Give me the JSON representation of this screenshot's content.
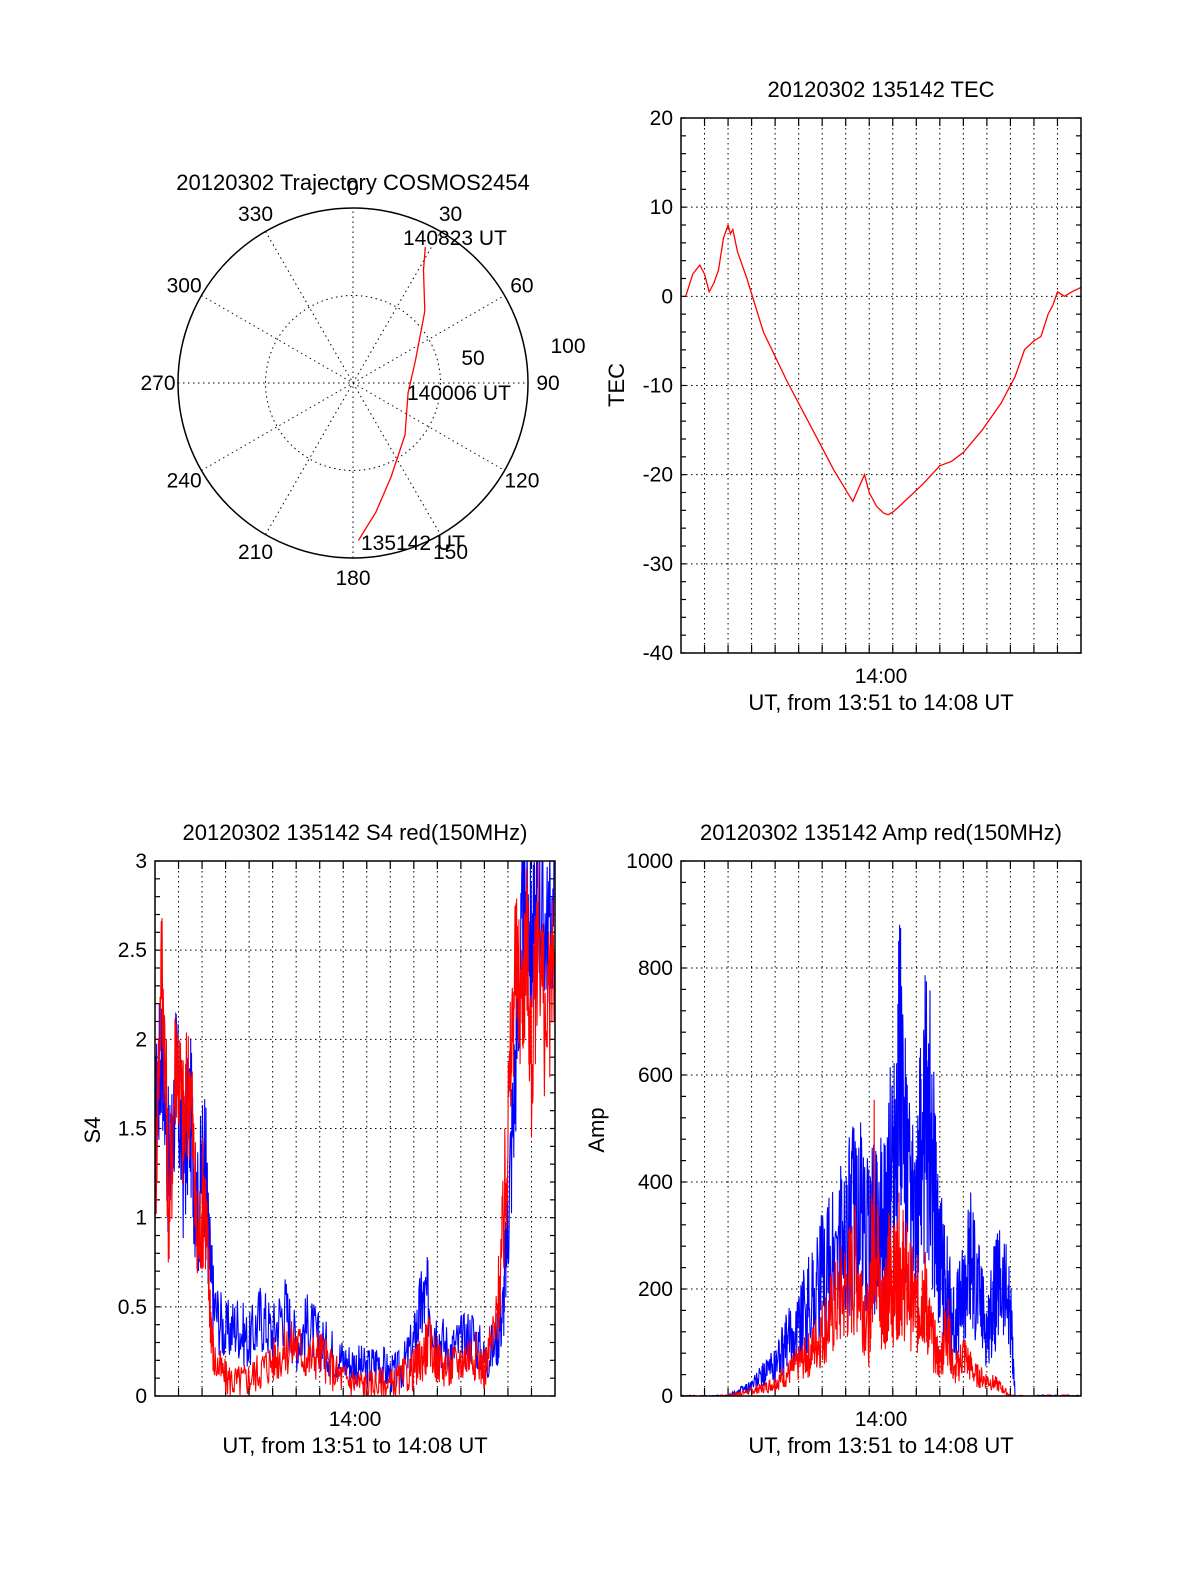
{
  "chart_data": [
    {
      "id": "trajectory",
      "type": "polar",
      "title": "20120302 Trajectory COSMOS2454",
      "angle_labels": [
        "0",
        "30",
        "60",
        "90",
        "120",
        "150",
        "180",
        "210",
        "240",
        "270",
        "300",
        "330"
      ],
      "radial_labels": [
        "50",
        "100"
      ],
      "rlim": [
        0,
        100
      ],
      "series": [
        {
          "name": "trajectory",
          "color": "#ff0000",
          "points": [
            {
              "az": 178,
              "r": 90
            },
            {
              "az": 170,
              "r": 75
            },
            {
              "az": 158,
              "r": 58
            },
            {
              "az": 135,
              "r": 42
            },
            {
              "az": 100,
              "r": 32
            },
            {
              "az": 70,
              "r": 38
            },
            {
              "az": 45,
              "r": 58
            },
            {
              "az": 32,
              "r": 76
            },
            {
              "az": 28,
              "r": 88
            }
          ]
        }
      ],
      "annotations": [
        {
          "text": "140823 UT",
          "az": 28,
          "r": 92
        },
        {
          "text": "140006 UT",
          "az": 100,
          "r": 32
        },
        {
          "text": "135142 UT",
          "az": 175,
          "r": 91
        }
      ]
    },
    {
      "id": "tec",
      "type": "line",
      "title": "20120302 135142 TEC",
      "xlabel": "UT, from 13:51 to 14:08 UT",
      "ylabel": "TEC",
      "x_unit": "minutes since 13:51",
      "xlim": [
        0,
        17
      ],
      "ylim": [
        -40,
        20
      ],
      "y_ticks": [
        -40,
        -30,
        -20,
        -10,
        0,
        10,
        20
      ],
      "x_ticks": [
        {
          "value": 9,
          "label": "14:00"
        }
      ],
      "series": [
        {
          "name": "TEC",
          "color": "#ff0000",
          "x": [
            0.2,
            0.5,
            0.8,
            1.0,
            1.2,
            1.4,
            1.6,
            1.8,
            2.0,
            2.1,
            2.2,
            2.4,
            2.8,
            3.5,
            4.5,
            5.5,
            6.5,
            7.3,
            7.8,
            8.0,
            8.3,
            8.6,
            8.8,
            9.0,
            9.3,
            9.7,
            10.3,
            11.0,
            11.5,
            12.0,
            12.8,
            13.6,
            14.2,
            14.6,
            15.0,
            15.3,
            15.6,
            15.8,
            16.0,
            16.3,
            16.6,
            17.0
          ],
          "values": [
            0,
            2.5,
            3.5,
            2.5,
            0.5,
            1.5,
            3.0,
            6.5,
            8.0,
            7.0,
            7.5,
            5.0,
            2.0,
            -4.0,
            -9.5,
            -14.5,
            -19.5,
            -23.0,
            -20.0,
            -22.0,
            -23.5,
            -24.3,
            -24.5,
            -24.2,
            -23.5,
            -22.5,
            -21.0,
            -19.0,
            -18.5,
            -17.5,
            -15.0,
            -12.0,
            -9.0,
            -6.0,
            -5.0,
            -4.5,
            -2.0,
            -1.0,
            0.5,
            0.0,
            0.5,
            1.0
          ]
        }
      ]
    },
    {
      "id": "s4",
      "type": "line",
      "title": "20120302 135142 S4 red(150MHz)",
      "xlabel": "UT, from 13:51 to 14:08 UT",
      "ylabel": "S4",
      "x_unit": "minutes since 13:51",
      "xlim": [
        0,
        17
      ],
      "ylim": [
        0,
        3
      ],
      "y_ticks": [
        0,
        0.5,
        1,
        1.5,
        2,
        2.5,
        3
      ],
      "y_tick_labels": [
        "0",
        "0.5",
        "1",
        "1.5",
        "2",
        "2.5",
        "3"
      ],
      "x_ticks": [
        {
          "value": 9,
          "label": "14:00"
        }
      ],
      "series": [
        {
          "name": "blue",
          "color": "#0000ff",
          "x": [
            0.0,
            0.3,
            0.6,
            0.9,
            1.2,
            1.5,
            1.8,
            2.1,
            2.3,
            2.5,
            3.0,
            3.5,
            4.0,
            4.5,
            5.0,
            5.5,
            6.0,
            6.5,
            7.0,
            7.5,
            8.0,
            8.5,
            9.0,
            9.5,
            10.0,
            10.5,
            11.0,
            11.3,
            11.6,
            12.0,
            12.5,
            13.0,
            13.5,
            14.0,
            14.5,
            14.8,
            15.0,
            15.3,
            15.6,
            15.8,
            16.0,
            16.3,
            16.6,
            17.0
          ],
          "values": [
            1.5,
            2.0,
            1.2,
            1.8,
            1.3,
            1.6,
            1.0,
            1.4,
            0.8,
            0.5,
            0.35,
            0.4,
            0.3,
            0.45,
            0.35,
            0.5,
            0.3,
            0.4,
            0.3,
            0.25,
            0.2,
            0.18,
            0.15,
            0.2,
            0.12,
            0.15,
            0.3,
            0.5,
            0.55,
            0.35,
            0.25,
            0.3,
            0.35,
            0.2,
            0.3,
            0.5,
            1.0,
            1.8,
            2.6,
            2.8,
            2.5,
            2.8,
            2.6,
            2.7
          ]
        },
        {
          "name": "red",
          "color": "#ff0000",
          "x": [
            0.0,
            0.3,
            0.6,
            0.9,
            1.2,
            1.5,
            1.8,
            2.1,
            2.3,
            2.5,
            3.0,
            3.5,
            4.0,
            4.5,
            5.0,
            5.5,
            6.0,
            6.5,
            7.0,
            7.5,
            8.0,
            8.5,
            9.0,
            9.5,
            10.0,
            10.5,
            11.0,
            11.3,
            11.6,
            12.0,
            12.5,
            13.0,
            13.5,
            14.0,
            14.5,
            14.8,
            15.0,
            15.3,
            15.6,
            15.8,
            16.0,
            16.3,
            16.6,
            17.0
          ],
          "values": [
            1.2,
            2.5,
            1.0,
            2.0,
            1.5,
            1.8,
            0.8,
            1.2,
            0.6,
            0.2,
            0.1,
            0.08,
            0.1,
            0.15,
            0.2,
            0.25,
            0.3,
            0.2,
            0.25,
            0.15,
            0.1,
            0.08,
            0.06,
            0.07,
            0.06,
            0.1,
            0.15,
            0.2,
            0.3,
            0.2,
            0.15,
            0.2,
            0.25,
            0.15,
            0.4,
            0.9,
            1.5,
            2.4,
            2.2,
            2.6,
            1.8,
            2.7,
            2.0,
            2.5
          ]
        }
      ]
    },
    {
      "id": "amp",
      "type": "line",
      "title": "20120302 135142 Amp red(150MHz)",
      "xlabel": "UT, from 13:51 to 14:08 UT",
      "ylabel": "Amp",
      "x_unit": "minutes since 13:51",
      "xlim": [
        0,
        17
      ],
      "ylim": [
        0,
        1000
      ],
      "y_ticks": [
        0,
        200,
        400,
        600,
        800,
        1000
      ],
      "x_ticks": [
        {
          "value": 9,
          "label": "14:00"
        }
      ],
      "series": [
        {
          "name": "red",
          "color": "#ff0000",
          "x": [
            0.0,
            2.0,
            2.5,
            3.0,
            3.5,
            4.0,
            4.5,
            5.0,
            5.5,
            6.0,
            6.5,
            7.0,
            7.5,
            8.0,
            8.2,
            8.5,
            8.8,
            9.0,
            9.3,
            9.6,
            10.0,
            10.3,
            10.6,
            11.0,
            11.3,
            11.6,
            12.0,
            12.5,
            13.0,
            13.5,
            14.0,
            17.0
          ],
          "values": [
            0,
            0,
            5,
            10,
            15,
            25,
            40,
            60,
            80,
            120,
            160,
            200,
            240,
            120,
            380,
            150,
            230,
            200,
            250,
            210,
            160,
            200,
            120,
            60,
            140,
            40,
            80,
            40,
            30,
            20,
            0,
            0
          ]
        },
        {
          "name": "blue",
          "color": "#0000ff",
          "x": [
            0.0,
            2.0,
            2.5,
            3.0,
            3.5,
            4.0,
            4.5,
            5.0,
            5.5,
            6.0,
            6.5,
            7.0,
            7.5,
            8.0,
            8.3,
            8.6,
            9.0,
            9.3,
            9.6,
            10.0,
            10.2,
            10.5,
            10.8,
            11.0,
            11.3,
            11.6,
            12.0,
            12.3,
            12.6,
            13.0,
            13.3,
            13.6,
            14.0,
            14.2,
            17.0
          ],
          "values": [
            0,
            0,
            10,
            20,
            40,
            60,
            100,
            140,
            180,
            220,
            260,
            300,
            350,
            280,
            330,
            300,
            450,
            610,
            380,
            300,
            450,
            550,
            380,
            260,
            200,
            140,
            180,
            260,
            200,
            120,
            180,
            210,
            160,
            0,
            0
          ]
        }
      ]
    }
  ]
}
